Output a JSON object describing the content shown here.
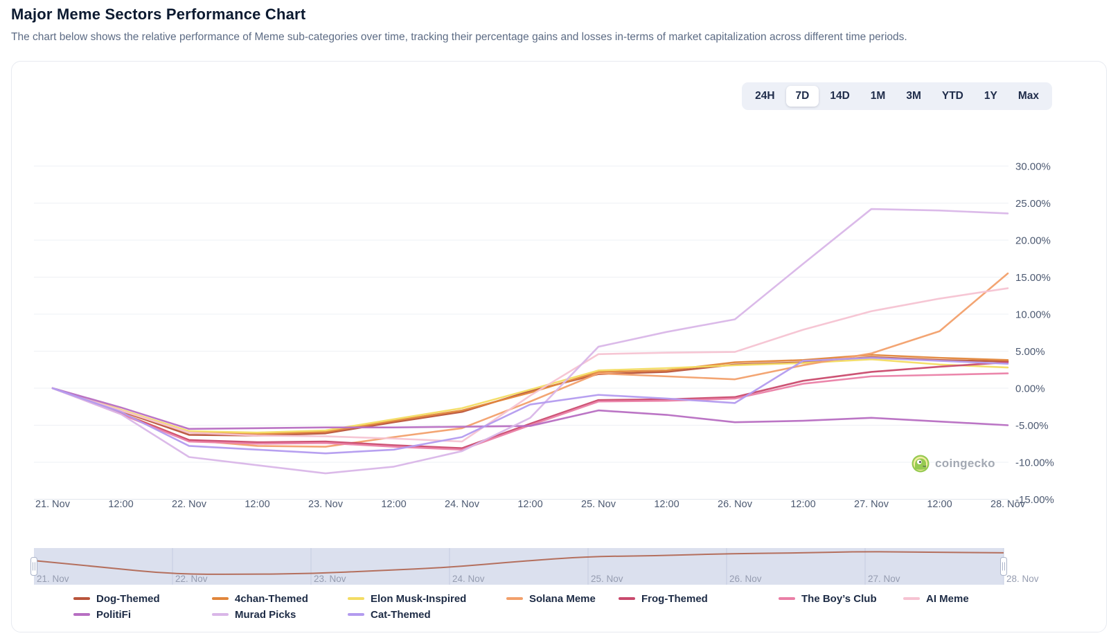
{
  "page": {
    "title": "Major Meme Sectors Performance Chart",
    "subtitle": "The chart below shows the relative performance of Meme sub-categories over time, tracking their percentage gains and losses in-terms of market capitalization across different time periods."
  },
  "time_range_selector": {
    "options": [
      "24H",
      "7D",
      "14D",
      "1M",
      "3M",
      "YTD",
      "1Y",
      "Max"
    ],
    "selected": "7D"
  },
  "watermark": {
    "label": "coingecko"
  },
  "chart_data": {
    "type": "line",
    "title": "Major Meme Sectors Performance Chart",
    "xlabel": "",
    "ylabel": "",
    "ylim": [
      -15,
      30
    ],
    "grid": "horizontal",
    "legend_position": "bottom",
    "y_tick_values": [
      30,
      25,
      20,
      15,
      10,
      5,
      0,
      -5,
      -10,
      -15
    ],
    "y_tick_format": "percent-2dp",
    "x_labels": [
      "21. Nov",
      "12:00",
      "22. Nov",
      "12:00",
      "23. Nov",
      "12:00",
      "24. Nov",
      "12:00",
      "25. Nov",
      "12:00",
      "26. Nov",
      "12:00",
      "27. Nov",
      "12:00",
      "28. Nov"
    ],
    "series": [
      {
        "name": "Dog-Themed",
        "color": "#b9543b",
        "values": [
          0,
          -3.1,
          -6.3,
          -6.4,
          -6.1,
          -4.6,
          -3.2,
          -0.4,
          1.9,
          2.2,
          3.2,
          3.5,
          4.2,
          3.8,
          3.6
        ]
      },
      {
        "name": "4chan-Themed",
        "color": "#e1863b",
        "values": [
          0,
          -3.0,
          -6.0,
          -6.2,
          -5.9,
          -4.4,
          -3.0,
          -0.6,
          2.2,
          2.4,
          3.5,
          3.8,
          4.5,
          4.1,
          3.8
        ]
      },
      {
        "name": "Elon Musk-Inspired",
        "color": "#f3dc63",
        "values": [
          0,
          -2.9,
          -5.8,
          -6.0,
          -5.7,
          -4.2,
          -2.7,
          -0.2,
          2.4,
          2.7,
          3.1,
          3.4,
          3.9,
          3.2,
          2.8
        ]
      },
      {
        "name": "Solana Meme",
        "color": "#f2a06b",
        "values": [
          0,
          -3.3,
          -7.0,
          -7.8,
          -7.9,
          -6.6,
          -5.4,
          -1.8,
          2.0,
          1.6,
          1.2,
          3.1,
          4.7,
          7.7,
          15.5
        ]
      },
      {
        "name": "Frog-Themed",
        "color": "#c94a6d",
        "values": [
          0,
          -3.4,
          -7.0,
          -7.3,
          -7.2,
          -7.7,
          -8.1,
          -4.8,
          -1.6,
          -1.5,
          -1.2,
          1.0,
          2.2,
          2.9,
          3.5
        ]
      },
      {
        "name": "The Boy’s Club",
        "color": "#ea7fa6",
        "values": [
          0,
          -3.5,
          -7.2,
          -7.5,
          -7.4,
          -7.9,
          -8.3,
          -5.0,
          -1.8,
          -1.7,
          -1.4,
          0.6,
          1.6,
          1.8,
          2.0
        ]
      },
      {
        "name": "AI Meme",
        "color": "#f6c3d2",
        "values": [
          0,
          -3.0,
          -6.0,
          -6.4,
          -6.5,
          -6.8,
          -7.2,
          -1.0,
          4.6,
          4.8,
          4.9,
          7.9,
          10.4,
          12.1,
          13.5
        ]
      },
      {
        "name": "PolitiFi",
        "color": "#b76ec2",
        "values": [
          0,
          -2.6,
          -5.5,
          -5.4,
          -5.3,
          -5.3,
          -5.2,
          -5.1,
          -3.0,
          -3.6,
          -4.6,
          -4.4,
          -4.0,
          -4.5,
          -5.0
        ]
      },
      {
        "name": "Murad Picks",
        "color": "#d9b6e8",
        "values": [
          0,
          -3.5,
          -9.3,
          -10.4,
          -11.5,
          -10.6,
          -8.5,
          -4.0,
          5.6,
          7.6,
          9.3,
          16.8,
          24.2,
          24.0,
          23.6
        ]
      },
      {
        "name": "Cat-Themed",
        "color": "#b39bef",
        "values": [
          0,
          -3.2,
          -7.8,
          -8.3,
          -8.8,
          -8.3,
          -6.6,
          -2.2,
          -0.9,
          -1.4,
          -2.0,
          3.7,
          4.1,
          3.7,
          3.3
        ]
      }
    ],
    "navigator": {
      "shown_series": "Dog-Themed",
      "labels": [
        "21. Nov",
        "22. Nov",
        "23. Nov",
        "24. Nov",
        "25. Nov",
        "26. Nov",
        "27. Nov",
        "28. Nov"
      ]
    }
  },
  "colors": {
    "grid_line": "#eef0f4",
    "axis_line": "#e2e6ed",
    "axis_label": "#4c5971",
    "nav_background": "#dbe0ee",
    "nav_grid": "#c5cce0",
    "nav_label": "#959cb0",
    "nav_line": "#ad5a43"
  }
}
